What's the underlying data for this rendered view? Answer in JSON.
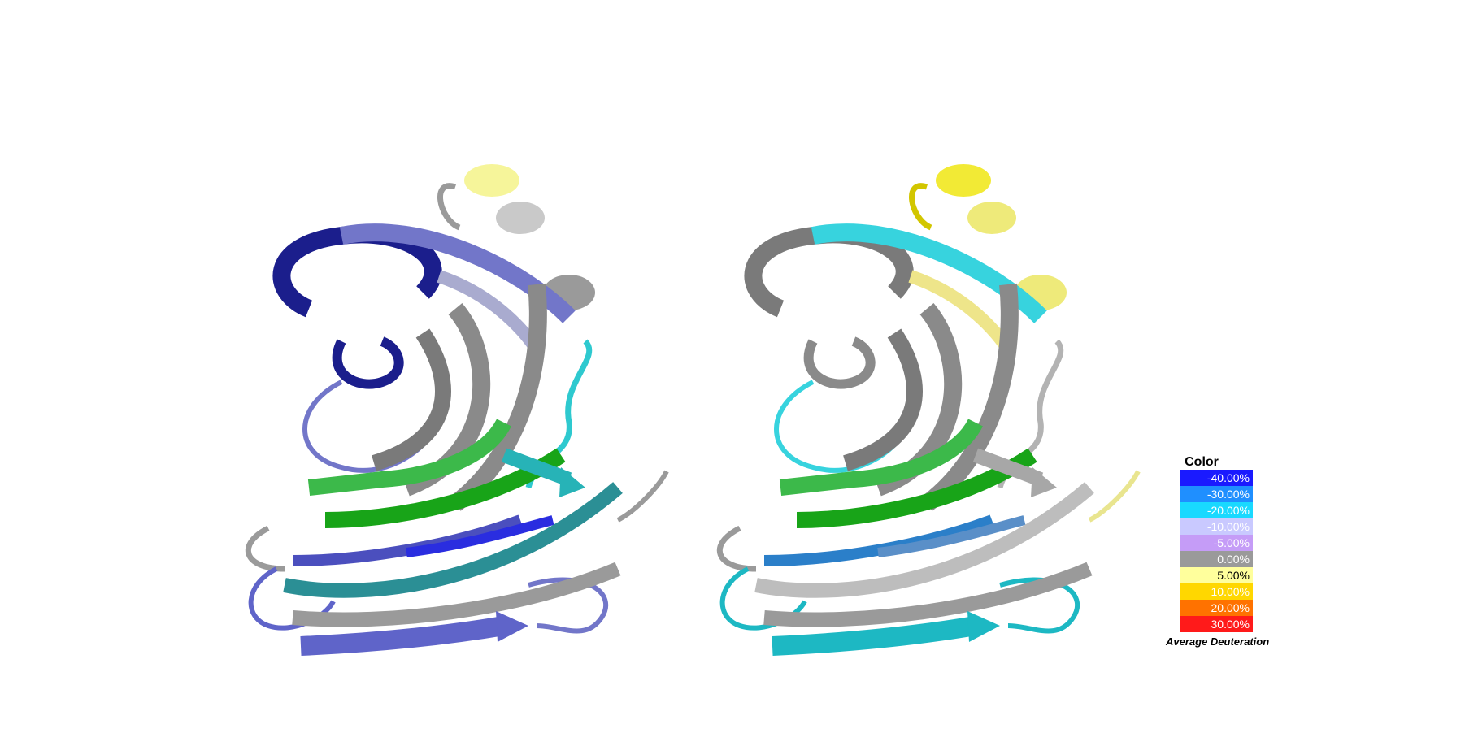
{
  "legend": {
    "title": "Color",
    "entries": [
      {
        "label": "-40.00%",
        "color": "#1a1aff",
        "text_color": "#ffffff"
      },
      {
        "label": "-30.00%",
        "color": "#1f8fff",
        "text_color": "#ffffff"
      },
      {
        "label": "-20.00%",
        "color": "#19d9ff",
        "text_color": "#ffffff"
      },
      {
        "label": "-10.00%",
        "color": "#c9c9ff",
        "text_color": "#ffffff"
      },
      {
        "label": "-5.00%",
        "color": "#c59cf7",
        "text_color": "#ffffff"
      },
      {
        "label": "0.00%",
        "color": "#9a9a9a",
        "text_color": "#ffffff"
      },
      {
        "label": "5.00%",
        "color": "#ffff9c",
        "text_color": "#000000"
      },
      {
        "label": "10.00%",
        "color": "#ffd700",
        "text_color": "#ffffff"
      },
      {
        "label": "20.00%",
        "color": "#ff7200",
        "text_color": "#ffffff"
      },
      {
        "label": "30.00%",
        "color": "#ff1a1a",
        "text_color": "#ffffff"
      }
    ],
    "caption": "Average Deuteration"
  }
}
